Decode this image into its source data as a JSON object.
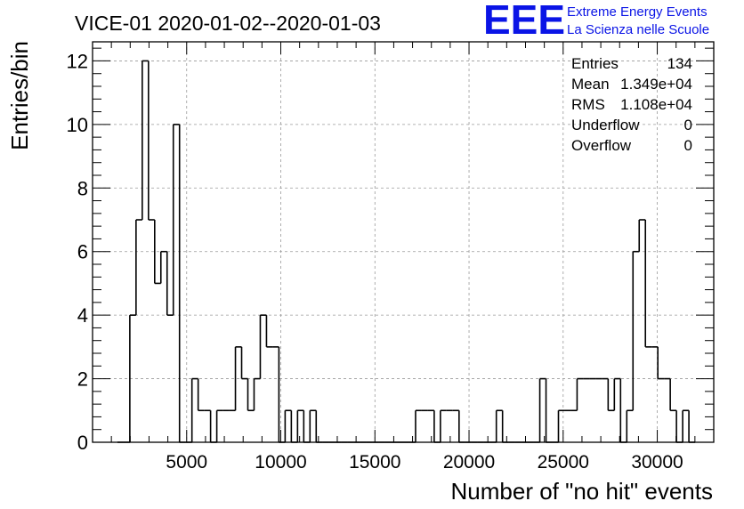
{
  "chart_data": {
    "type": "bar",
    "title": "VICE-01 2020-01-02--2020-01-03",
    "xlabel": "Number of \"no hit\" events",
    "ylabel": "Entries/bin",
    "xlim": [
      0,
      33000
    ],
    "ylim": [
      0,
      12.6
    ],
    "grid": true,
    "x_ticks": [
      5000,
      10000,
      15000,
      20000,
      25000,
      30000
    ],
    "x_tick_labels": [
      "5000",
      "10000",
      "15000",
      "20000",
      "25000",
      "30000"
    ],
    "y_ticks": [
      0,
      2,
      4,
      6,
      8,
      10,
      12
    ],
    "y_tick_labels": [
      "0",
      "2",
      "4",
      "6",
      "8",
      "10",
      "12"
    ],
    "bin_width": 330,
    "bins": [
      {
        "x": 1320,
        "y": 0
      },
      {
        "x": 1650,
        "y": 0
      },
      {
        "x": 1980,
        "y": 4
      },
      {
        "x": 2310,
        "y": 7
      },
      {
        "x": 2640,
        "y": 12
      },
      {
        "x": 2970,
        "y": 7
      },
      {
        "x": 3300,
        "y": 5
      },
      {
        "x": 3630,
        "y": 6
      },
      {
        "x": 3960,
        "y": 4
      },
      {
        "x": 4290,
        "y": 10
      },
      {
        "x": 4620,
        "y": 0
      },
      {
        "x": 4950,
        "y": 0
      },
      {
        "x": 5280,
        "y": 2
      },
      {
        "x": 5610,
        "y": 1
      },
      {
        "x": 5940,
        "y": 1
      },
      {
        "x": 6270,
        "y": 0
      },
      {
        "x": 6600,
        "y": 1
      },
      {
        "x": 6930,
        "y": 1
      },
      {
        "x": 7260,
        "y": 1
      },
      {
        "x": 7590,
        "y": 3
      },
      {
        "x": 7920,
        "y": 2
      },
      {
        "x": 8250,
        "y": 1
      },
      {
        "x": 8580,
        "y": 2
      },
      {
        "x": 8910,
        "y": 4
      },
      {
        "x": 9240,
        "y": 3
      },
      {
        "x": 9570,
        "y": 3
      },
      {
        "x": 9900,
        "y": 0
      },
      {
        "x": 10230,
        "y": 1
      },
      {
        "x": 10560,
        "y": 0
      },
      {
        "x": 10890,
        "y": 1
      },
      {
        "x": 11220,
        "y": 0
      },
      {
        "x": 11550,
        "y": 1
      },
      {
        "x": 11880,
        "y": 0
      },
      {
        "x": 12210,
        "y": 0
      },
      {
        "x": 12540,
        "y": 0
      },
      {
        "x": 12870,
        "y": 0
      },
      {
        "x": 13200,
        "y": 0
      },
      {
        "x": 13530,
        "y": 0
      },
      {
        "x": 13860,
        "y": 0
      },
      {
        "x": 14190,
        "y": 0
      },
      {
        "x": 14520,
        "y": 0
      },
      {
        "x": 14850,
        "y": 0
      },
      {
        "x": 15180,
        "y": 0
      },
      {
        "x": 15510,
        "y": 0
      },
      {
        "x": 15840,
        "y": 0
      },
      {
        "x": 16170,
        "y": 0
      },
      {
        "x": 16500,
        "y": 0
      },
      {
        "x": 16830,
        "y": 0
      },
      {
        "x": 17160,
        "y": 1
      },
      {
        "x": 17490,
        "y": 1
      },
      {
        "x": 17820,
        "y": 1
      },
      {
        "x": 18150,
        "y": 0
      },
      {
        "x": 18480,
        "y": 1
      },
      {
        "x": 18810,
        "y": 1
      },
      {
        "x": 19140,
        "y": 1
      },
      {
        "x": 19470,
        "y": 0
      },
      {
        "x": 19800,
        "y": 0
      },
      {
        "x": 20130,
        "y": 0
      },
      {
        "x": 20460,
        "y": 0
      },
      {
        "x": 20790,
        "y": 0
      },
      {
        "x": 21120,
        "y": 0
      },
      {
        "x": 21450,
        "y": 1
      },
      {
        "x": 21780,
        "y": 0
      },
      {
        "x": 22110,
        "y": 0
      },
      {
        "x": 22440,
        "y": 0
      },
      {
        "x": 22770,
        "y": 0
      },
      {
        "x": 23100,
        "y": 0
      },
      {
        "x": 23430,
        "y": 0
      },
      {
        "x": 23760,
        "y": 2
      },
      {
        "x": 24090,
        "y": 0
      },
      {
        "x": 24420,
        "y": 0
      },
      {
        "x": 24750,
        "y": 1
      },
      {
        "x": 25080,
        "y": 1
      },
      {
        "x": 25410,
        "y": 1
      },
      {
        "x": 25740,
        "y": 2
      },
      {
        "x": 26070,
        "y": 2
      },
      {
        "x": 26400,
        "y": 2
      },
      {
        "x": 26730,
        "y": 2
      },
      {
        "x": 27060,
        "y": 2
      },
      {
        "x": 27390,
        "y": 1
      },
      {
        "x": 27720,
        "y": 2
      },
      {
        "x": 28050,
        "y": 0
      },
      {
        "x": 28380,
        "y": 1
      },
      {
        "x": 28710,
        "y": 6
      },
      {
        "x": 29040,
        "y": 7
      },
      {
        "x": 29370,
        "y": 3
      },
      {
        "x": 29700,
        "y": 3
      },
      {
        "x": 30030,
        "y": 2
      },
      {
        "x": 30360,
        "y": 2
      },
      {
        "x": 30690,
        "y": 1
      },
      {
        "x": 31020,
        "y": 0
      },
      {
        "x": 31350,
        "y": 1
      },
      {
        "x": 31680,
        "y": 0
      }
    ],
    "stats": [
      {
        "label": "Entries",
        "value": "134"
      },
      {
        "label": "Mean",
        "value": "1.349e+04"
      },
      {
        "label": "RMS",
        "value": "1.108e+04"
      },
      {
        "label": "Underflow",
        "value": "0"
      },
      {
        "label": "Overflow",
        "value": "0"
      }
    ]
  },
  "logo": {
    "text": "EEE",
    "line1": "Extreme Energy Events",
    "line2": "La Scienza nelle Scuole",
    "color": "#0a14e6"
  }
}
